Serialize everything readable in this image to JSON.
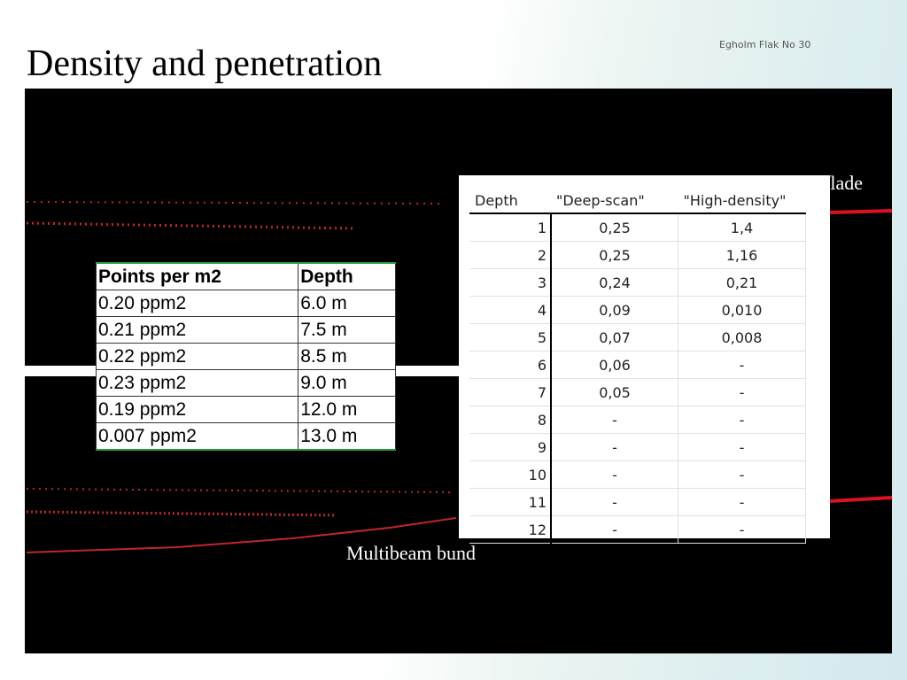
{
  "title": "Density and penetration",
  "map_label": "Egholm Flak No 30",
  "left_table": {
    "headers": [
      "Points per m2",
      "Depth"
    ],
    "rows": [
      [
        "0.20 ppm2",
        "6.0 m"
      ],
      [
        "0.21 ppm2",
        "7.5 m"
      ],
      [
        "0.22 ppm2",
        "8.5 m"
      ],
      [
        "0.23 ppm2",
        "9.0 m"
      ],
      [
        "0.19 ppm2",
        "12.0 m"
      ],
      [
        "0.007 ppm2",
        "13.0 m"
      ]
    ]
  },
  "right_table": {
    "headers": [
      "Depth",
      "\"Deep-scan\"",
      "\"High-density\""
    ],
    "rows": [
      [
        "1",
        "0,25",
        "1,4"
      ],
      [
        "2",
        "0,25",
        "1,16"
      ],
      [
        "3",
        "0,24",
        "0,21"
      ],
      [
        "4",
        "0,09",
        "0,010"
      ],
      [
        "5",
        "0,07",
        "0,008"
      ],
      [
        "6",
        "0,06",
        "-"
      ],
      [
        "7",
        "0,05",
        "-"
      ],
      [
        "8",
        "-",
        "-"
      ],
      [
        "9",
        "-",
        "-"
      ],
      [
        "10",
        "-",
        "-"
      ],
      [
        "11",
        "-",
        "-"
      ],
      [
        "12",
        "-",
        "-"
      ]
    ]
  },
  "labels": {
    "top_right": "flade",
    "bottom": "Multibeam bund"
  }
}
